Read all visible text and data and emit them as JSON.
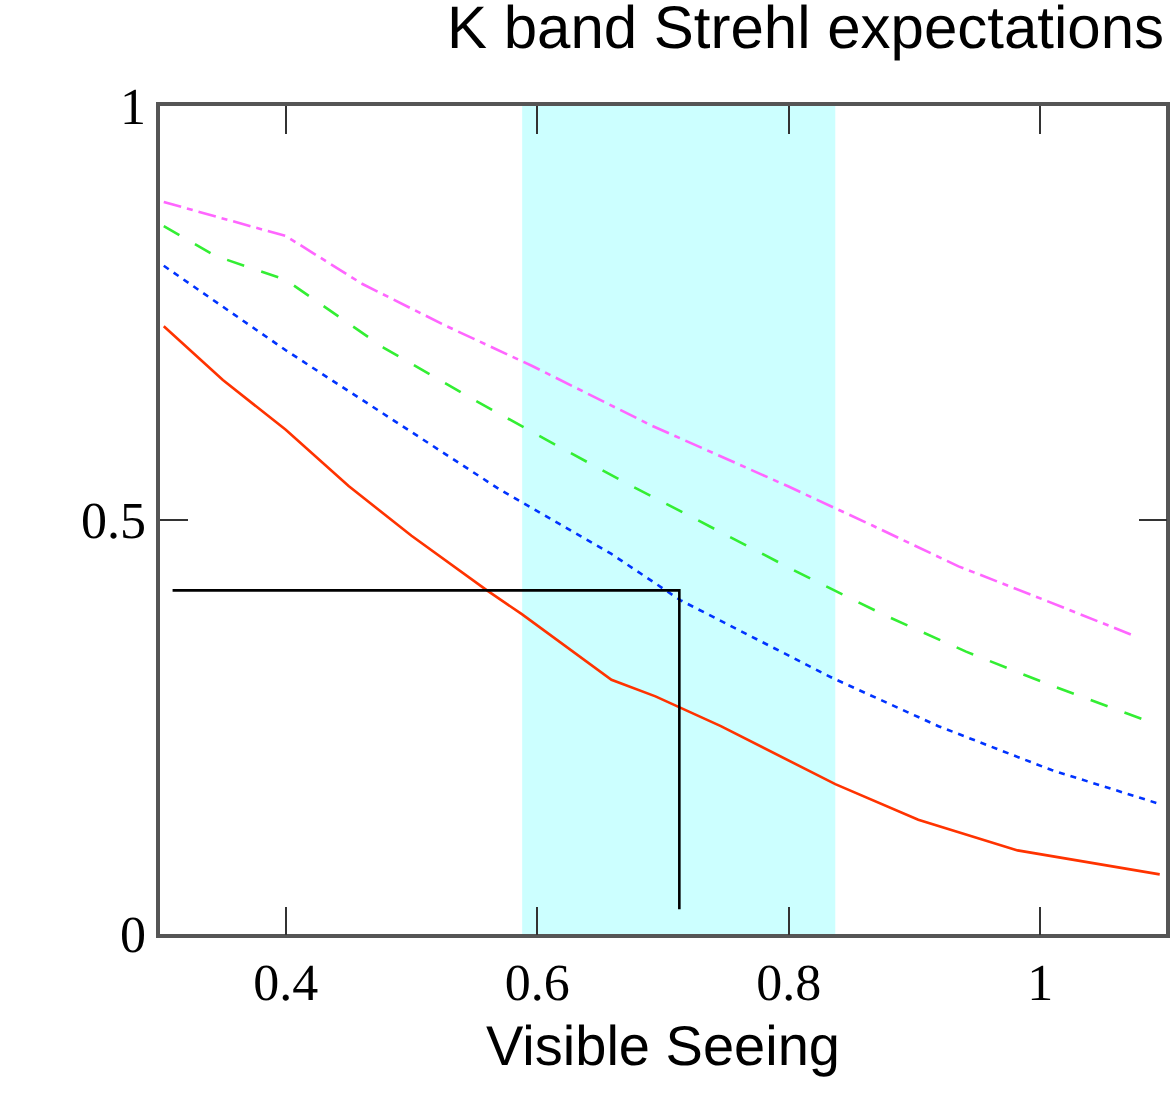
{
  "chart_data": {
    "type": "line",
    "title": "K band Strehl expectations",
    "xlabel": "Visible Seeing",
    "xlim": [
      0.3,
      1.1
    ],
    "xticks": [
      0.4,
      0.6,
      0.8,
      1
    ],
    "ylim": [
      0,
      1
    ],
    "yticks": [
      0,
      0.5,
      1
    ],
    "grid": false,
    "bands": [
      {
        "axis": "x",
        "from": 0.588,
        "to": 0.837,
        "color": "#ccffff"
      }
    ],
    "series": [
      {
        "color": "#ff3300",
        "line_style": "solid",
        "x": [
          0.303,
          0.35,
          0.4,
          0.45,
          0.5,
          0.56,
          0.588,
          0.659,
          0.694,
          0.746,
          0.837,
          0.903,
          0.982,
          1.095
        ],
        "values": [
          0.734,
          0.669,
          0.609,
          0.541,
          0.481,
          0.415,
          0.386,
          0.307,
          0.287,
          0.251,
          0.181,
          0.138,
          0.101,
          0.072
        ]
      },
      {
        "color": "#0033ff",
        "line_style": "dotted",
        "x": [
          0.303,
          0.4,
          0.476,
          0.571,
          0.659,
          0.714,
          0.835,
          0.919,
          1.009,
          1.095
        ],
        "values": [
          0.807,
          0.705,
          0.63,
          0.536,
          0.459,
          0.403,
          0.309,
          0.251,
          0.198,
          0.157
        ]
      },
      {
        "color": "#33ee33",
        "line_style": "dashed",
        "x": [
          0.303,
          0.344,
          0.4,
          0.478,
          0.544,
          0.607,
          0.675,
          0.697,
          0.807,
          0.875,
          0.941,
          1.009,
          1.084
        ],
        "values": [
          0.855,
          0.819,
          0.79,
          0.708,
          0.65,
          0.597,
          0.541,
          0.524,
          0.437,
          0.386,
          0.341,
          0.3,
          0.258
        ]
      },
      {
        "color": "#ff66ff",
        "line_style": "dashdot",
        "x": [
          0.303,
          0.4,
          0.461,
          0.528,
          0.596,
          0.691,
          0.799,
          0.867,
          0.935,
          1.004,
          1.075
        ],
        "values": [
          0.884,
          0.843,
          0.785,
          0.734,
          0.686,
          0.614,
          0.541,
          0.493,
          0.444,
          0.403,
          0.36
        ]
      },
      {
        "color": "#000000",
        "line_style": "solid",
        "x": [
          0.31,
          0.713,
          0.713
        ],
        "values": [
          0.415,
          0.415,
          0.03
        ]
      }
    ]
  }
}
